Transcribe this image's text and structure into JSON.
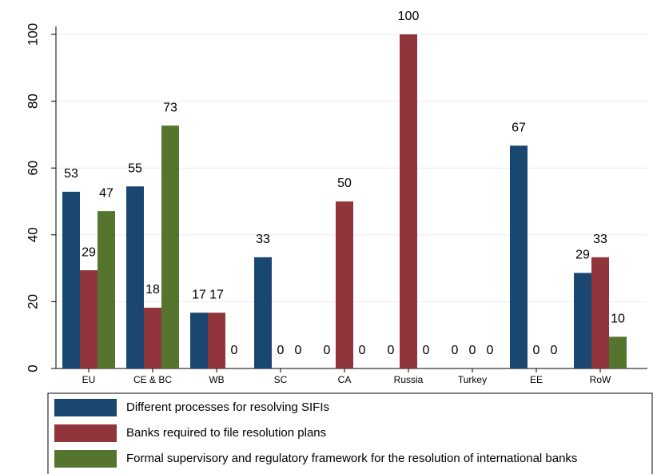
{
  "chart_data": {
    "type": "bar",
    "categories": [
      "EU",
      "CE & BC",
      "WB",
      "SC",
      "CA",
      "Russia",
      "Turkey",
      "EE",
      "RoW"
    ],
    "series": [
      {
        "name": "Different processes for resolving SIFIs",
        "color": "#1a476f",
        "values": [
          52.9,
          54.5,
          16.7,
          33.3,
          0,
          0,
          0,
          66.7,
          28.6
        ],
        "value_labels": [
          "53",
          "55",
          "17",
          "33",
          "0",
          "0",
          "0",
          "67",
          "29"
        ]
      },
      {
        "name": "Banks required to file resolution plans",
        "color": "#90353b",
        "values": [
          29.4,
          18.2,
          16.7,
          0,
          50,
          100,
          0,
          0,
          33.3
        ],
        "value_labels": [
          "29",
          "18",
          "17",
          "0",
          "50",
          "100",
          "0",
          "0",
          "33"
        ]
      },
      {
        "name": "Formal supervisory and regulatory framework for the resolution of international banks",
        "color": "#55752f",
        "values": [
          47.1,
          72.7,
          0,
          0,
          0,
          0,
          0,
          0,
          9.5
        ],
        "value_labels": [
          "47",
          "73",
          "0",
          "0",
          "0",
          "0",
          "0",
          "0",
          "10"
        ]
      }
    ],
    "ylim": [
      0,
      100
    ],
    "yticks": [
      0,
      20,
      40,
      60,
      80,
      100
    ],
    "grid": true,
    "legend": "bottom"
  }
}
